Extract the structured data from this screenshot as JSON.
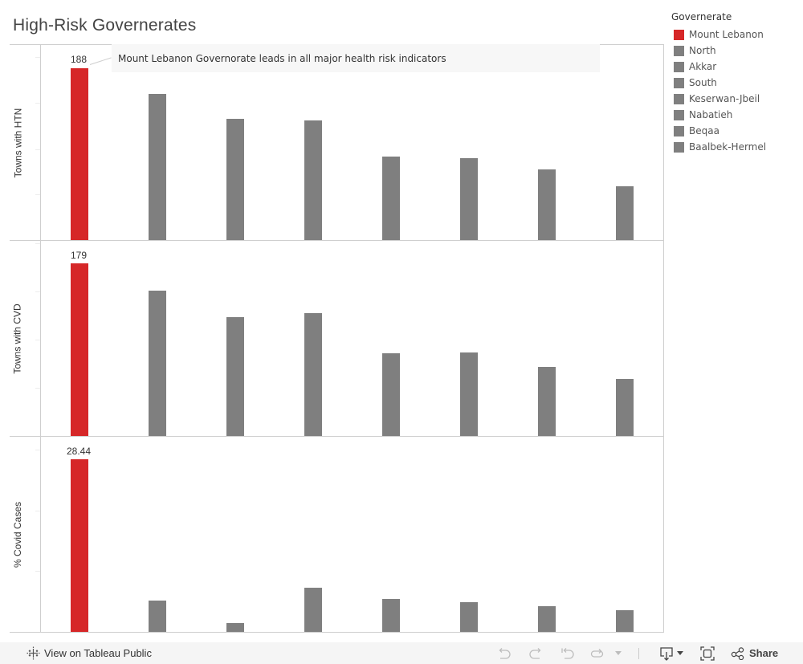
{
  "title": "High-Risk Governerates",
  "annotation": "Mount Lebanon Governorate leads in all major health risk indicators",
  "legend": {
    "title": "Governerate",
    "items": [
      {
        "label": "Mount Lebanon",
        "color": "#d62728"
      },
      {
        "label": "North",
        "color": "#7f7f7f"
      },
      {
        "label": "Akkar",
        "color": "#7f7f7f"
      },
      {
        "label": "South",
        "color": "#7f7f7f"
      },
      {
        "label": "Keserwan-Jbeil",
        "color": "#7f7f7f"
      },
      {
        "label": "Nabatieh",
        "color": "#7f7f7f"
      },
      {
        "label": "Beqaa",
        "color": "#7f7f7f"
      },
      {
        "label": "Baalbek-Hermel",
        "color": "#7f7f7f"
      }
    ]
  },
  "rows": [
    {
      "label": "Towns with HTN",
      "top_label": "188"
    },
    {
      "label": "Towns with CVD",
      "top_label": "179"
    },
    {
      "label": "% Covid Cases",
      "top_label": "28.44"
    }
  ],
  "toolbar": {
    "view_label": "View on Tableau Public",
    "share_label": "Share",
    "icons": [
      "tableau-logo-icon",
      "undo-icon",
      "redo-icon",
      "revert-icon",
      "refresh-icon",
      "download-icon",
      "fullscreen-icon",
      "share-icon"
    ]
  },
  "chart_data": [
    {
      "type": "bar",
      "title": "Towns with HTN",
      "categories": [
        "Mount Lebanon",
        "North",
        "Akkar",
        "South",
        "Keserwan-Jbeil",
        "Nabatieh",
        "Beqaa",
        "Baalbek-Hermel"
      ],
      "values": [
        188,
        160,
        133,
        131,
        91,
        90,
        77,
        59
      ],
      "highlight": "Mount Lebanon",
      "ylabel": "Towns with HTN",
      "ylim": [
        0,
        200
      ],
      "yticks": [
        0,
        50,
        100,
        150,
        200
      ],
      "data_labels": {
        "Mount Lebanon": "188"
      },
      "grid": false
    },
    {
      "type": "bar",
      "title": "Towns with CVD",
      "categories": [
        "Mount Lebanon",
        "North",
        "Akkar",
        "South",
        "Keserwan-Jbeil",
        "Nabatieh",
        "Beqaa",
        "Baalbek-Hermel"
      ],
      "values": [
        179,
        151,
        123,
        127,
        86,
        87,
        72,
        59
      ],
      "highlight": "Mount Lebanon",
      "ylabel": "Towns with CVD",
      "ylim": [
        0,
        190
      ],
      "yticks": [
        0,
        50,
        100,
        150
      ],
      "data_labels": {
        "Mount Lebanon": "179"
      },
      "grid": false
    },
    {
      "type": "bar",
      "title": "% Covid Cases",
      "categories": [
        "Mount Lebanon",
        "North",
        "Akkar",
        "South",
        "Keserwan-Jbeil",
        "Nabatieh",
        "Beqaa",
        "Baalbek-Hermel"
      ],
      "values": [
        28.44,
        5.16,
        1.46,
        7.28,
        5.42,
        4.89,
        4.23,
        3.57
      ],
      "highlight": "Mount Lebanon",
      "ylabel": "% Covid Cases",
      "ylim": [
        0,
        30
      ],
      "yticks": [
        0,
        10,
        20,
        30
      ],
      "data_labels": {
        "Mount Lebanon": "28.44"
      },
      "grid": false
    }
  ]
}
